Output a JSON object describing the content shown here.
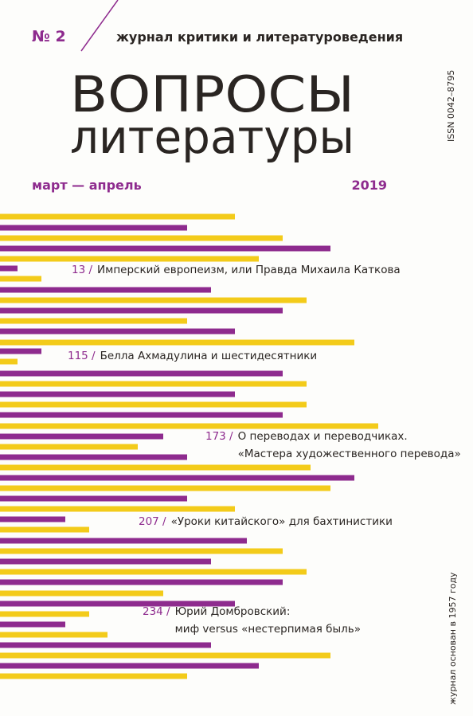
{
  "header": {
    "issue": "№ 2",
    "subtitle": "журнал критики и литературоведения",
    "title_line1": "ВОПРОСЫ",
    "title_line2": "литературы",
    "months": "март — апрель",
    "year": "2019",
    "issn": "ISSN 0042–8795"
  },
  "contents": [
    {
      "page": "13 /",
      "lines": [
        "Имперский европеизм, или Правда Михаила Каткова"
      ]
    },
    {
      "page": "115 /",
      "lines": [
        "Белла Ахмадулина и шестидесятники"
      ]
    },
    {
      "page": "173 /",
      "lines": [
        "О переводах и переводчиках.",
        "«Мастера художественного перевода»"
      ]
    },
    {
      "page": "207 /",
      "lines": [
        "«Уроки китайского» для бахтинистики"
      ]
    },
    {
      "page": "234 /",
      "lines": [
        "Юрий Домбровский:",
        "миф versus «нестерпимая быль»"
      ]
    }
  ],
  "founded": "журнал основан в 1957 году"
}
